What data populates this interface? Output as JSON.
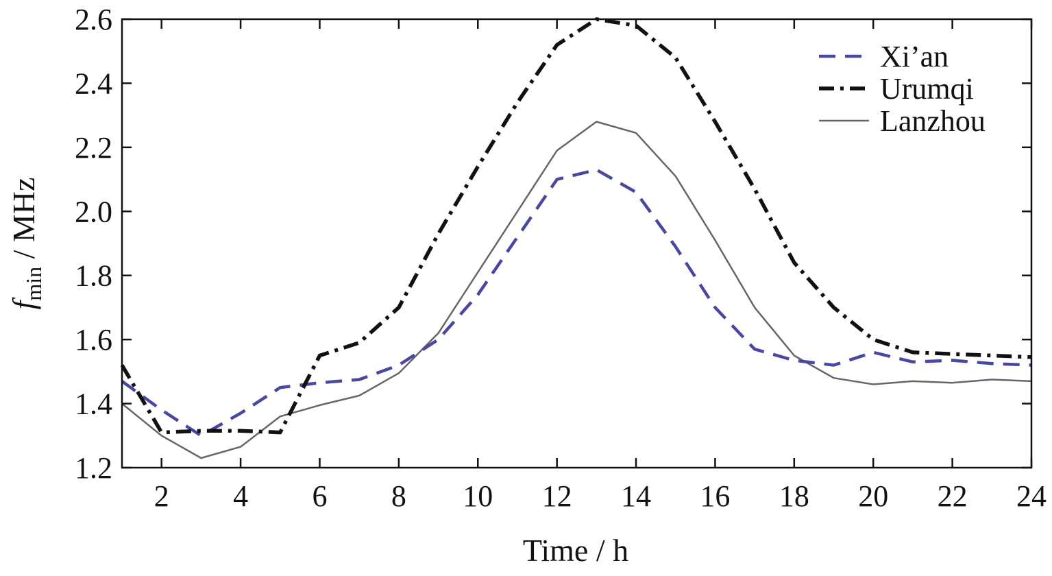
{
  "chart_data": {
    "type": "line",
    "xlabel": "Time / h",
    "ylabel": {
      "symbol": "f",
      "subscript": "min",
      "unit": " / MHz"
    },
    "xlim": [
      1,
      24
    ],
    "ylim": [
      1.2,
      2.6
    ],
    "xticks": [
      2,
      4,
      6,
      8,
      10,
      12,
      14,
      16,
      18,
      20,
      22,
      24
    ],
    "yticks": [
      "1.2",
      "1.4",
      "1.6",
      "1.8",
      "2.0",
      "2.2",
      "2.4",
      "2.6"
    ],
    "legend_position": "top-right",
    "grid": false,
    "x": [
      1,
      2,
      3,
      4,
      5,
      6,
      7,
      8,
      9,
      10,
      11,
      12,
      13,
      14,
      15,
      16,
      17,
      18,
      19,
      20,
      21,
      22,
      23,
      24
    ],
    "series": [
      {
        "name": "Xi’an",
        "style": "dashed",
        "color": "#4848a0",
        "values": [
          1.47,
          1.38,
          1.3,
          1.37,
          1.45,
          1.465,
          1.475,
          1.52,
          1.6,
          1.74,
          1.92,
          2.1,
          2.13,
          2.06,
          1.89,
          1.7,
          1.57,
          1.535,
          1.52,
          1.56,
          1.53,
          1.535,
          1.525,
          1.52
        ]
      },
      {
        "name": "Urumqi",
        "style": "dashdot",
        "color": "#111111",
        "values": [
          1.52,
          1.31,
          1.315,
          1.315,
          1.31,
          1.55,
          1.59,
          1.7,
          1.93,
          2.14,
          2.34,
          2.52,
          2.6,
          2.58,
          2.48,
          2.28,
          2.07,
          1.84,
          1.7,
          1.6,
          1.56,
          1.555,
          1.55,
          1.545
        ]
      },
      {
        "name": "Lanzhou",
        "style": "solid",
        "color": "#666666",
        "values": [
          1.4,
          1.3,
          1.23,
          1.265,
          1.36,
          1.395,
          1.425,
          1.495,
          1.62,
          1.81,
          2.0,
          2.19,
          2.28,
          2.245,
          2.11,
          1.91,
          1.7,
          1.55,
          1.48,
          1.46,
          1.47,
          1.465,
          1.475,
          1.47
        ]
      }
    ]
  }
}
